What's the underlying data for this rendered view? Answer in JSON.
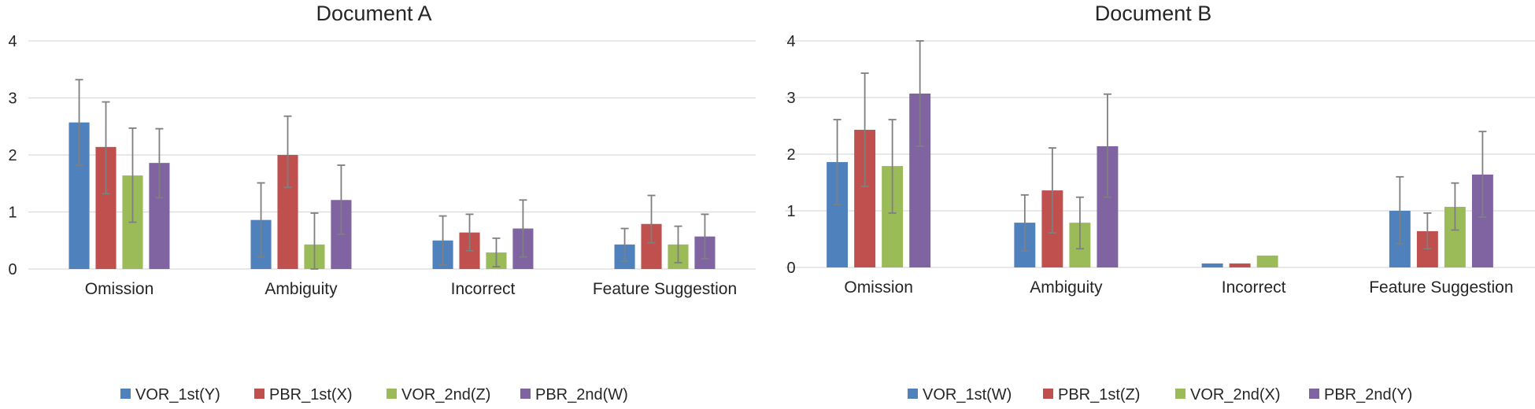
{
  "chart_data": [
    {
      "type": "bar",
      "title": "Document A",
      "xlabel": "",
      "ylabel": "",
      "ylim": [
        0,
        4
      ],
      "yticks": [
        "0",
        "1",
        "2",
        "3",
        "4"
      ],
      "categories": [
        "Omission",
        "Ambiguity",
        "Incorrect",
        "Feature Suggestion"
      ],
      "series": [
        {
          "name": "VOR_1st(Y)",
          "color": "#4f81bd",
          "values": [
            2.57,
            0.86,
            0.5,
            0.43
          ],
          "err_low": [
            1.82,
            0.21,
            0.07,
            0.14
          ],
          "err_high": [
            3.32,
            1.51,
            0.93,
            0.71
          ]
        },
        {
          "name": "PBR_1st(X)",
          "color": "#c0504d",
          "values": [
            2.14,
            2.0,
            0.64,
            0.79
          ],
          "err_low": [
            1.32,
            1.43,
            0.32,
            0.46
          ],
          "err_high": [
            2.93,
            2.68,
            0.96,
            1.29
          ]
        },
        {
          "name": "VOR_2nd(Z)",
          "color": "#9bbb59",
          "values": [
            1.64,
            0.43,
            0.29,
            0.43
          ],
          "err_low": [
            0.82,
            0.0,
            0.04,
            0.11
          ],
          "err_high": [
            2.47,
            0.98,
            0.54,
            0.75
          ]
        },
        {
          "name": "PBR_2nd(W)",
          "color": "#8064a2",
          "values": [
            1.86,
            1.21,
            0.71,
            0.57
          ],
          "err_low": [
            1.25,
            0.61,
            0.21,
            0.18
          ],
          "err_high": [
            2.46,
            1.82,
            1.21,
            0.96
          ]
        }
      ],
      "legend_position": "bottom",
      "grid": true
    },
    {
      "type": "bar",
      "title": "Document B",
      "xlabel": "",
      "ylabel": "",
      "ylim": [
        0,
        4
      ],
      "yticks": [
        "0",
        "1",
        "2",
        "3",
        "4"
      ],
      "categories": [
        "Omission",
        "Ambiguity",
        "Incorrect",
        "Feature Suggestion"
      ],
      "series": [
        {
          "name": "VOR_1st(W)",
          "color": "#4f81bd",
          "values": [
            1.86,
            0.79,
            0.07,
            1.0
          ],
          "err_low": [
            1.11,
            0.29,
            0.07,
            0.42
          ],
          "err_high": [
            2.61,
            1.28,
            0.07,
            1.6
          ]
        },
        {
          "name": "PBR_1st(Z)",
          "color": "#c0504d",
          "values": [
            2.43,
            1.36,
            0.07,
            0.64
          ],
          "err_low": [
            1.43,
            0.61,
            0.07,
            0.33
          ],
          "err_high": [
            3.43,
            2.11,
            0.07,
            0.96
          ]
        },
        {
          "name": "VOR_2nd(X)",
          "color": "#9bbb59",
          "values": [
            1.79,
            0.79,
            0.21,
            1.07
          ],
          "err_low": [
            0.96,
            0.33,
            0.21,
            0.66
          ],
          "err_high": [
            2.61,
            1.24,
            0.21,
            1.49
          ]
        },
        {
          "name": "PBR_2nd(Y)",
          "color": "#8064a2",
          "values": [
            3.07,
            2.14,
            0.0,
            1.64
          ],
          "err_low": [
            2.14,
            1.24,
            0.0,
            0.89
          ],
          "err_high": [
            4.0,
            3.06,
            0.0,
            2.4
          ]
        }
      ],
      "legend_position": "bottom",
      "grid": true
    }
  ]
}
